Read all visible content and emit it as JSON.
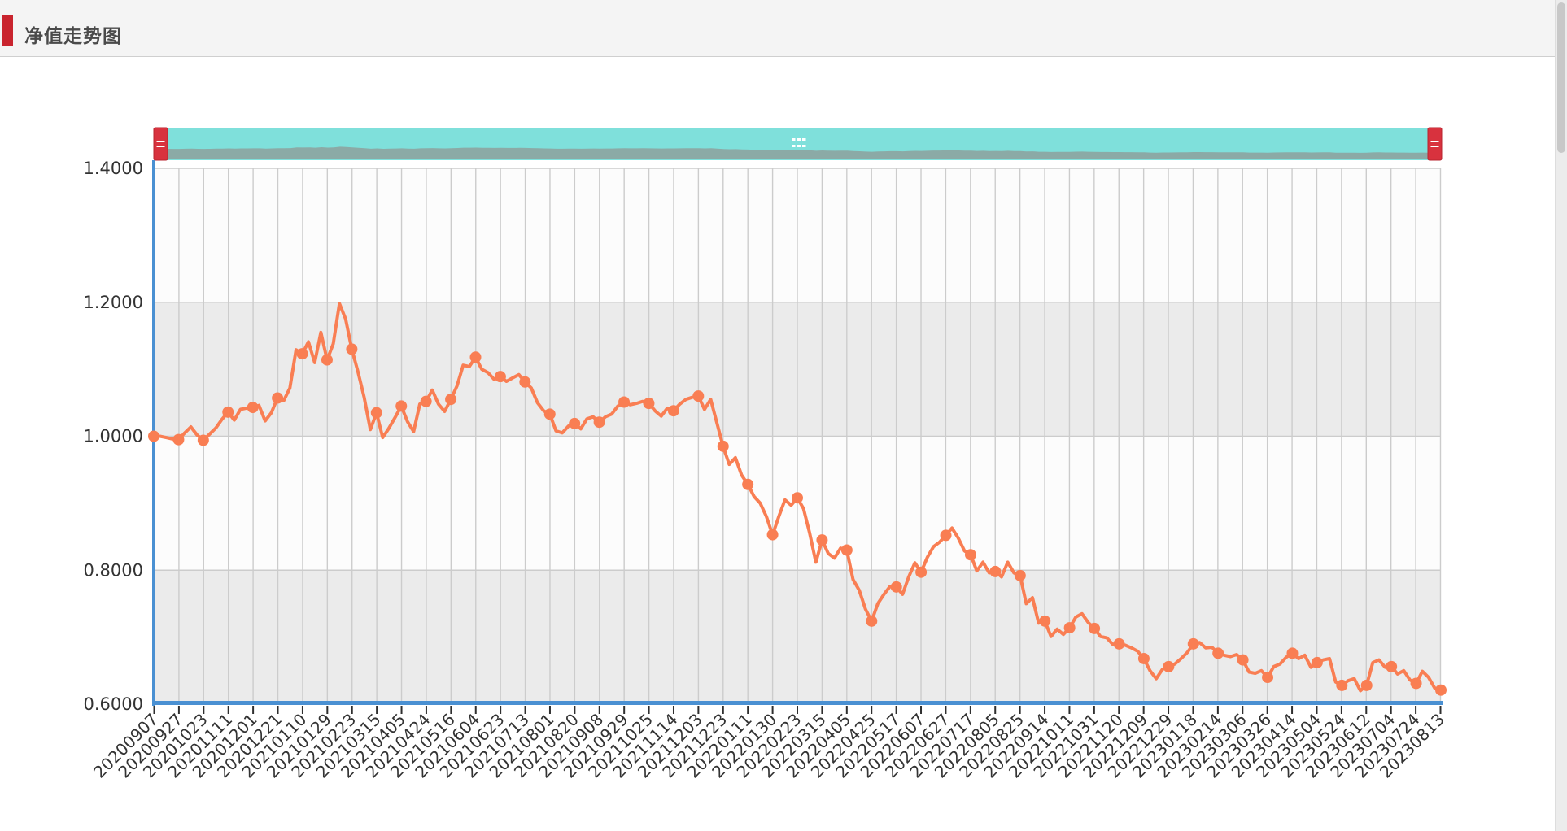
{
  "header": {
    "title": "净值走势图"
  },
  "chart_data": {
    "type": "line",
    "title": "净值走势图",
    "x_labels": [
      "20200907",
      "20200927",
      "20201023",
      "20201111",
      "20201201",
      "20201221",
      "20210110",
      "20210129",
      "20210223",
      "20210315",
      "20210405",
      "20210424",
      "20210516",
      "20210604",
      "20210623",
      "20210713",
      "20210801",
      "20210820",
      "20210908",
      "20210929",
      "20211025",
      "20211114",
      "20211203",
      "20211223",
      "20220111",
      "20220130",
      "20220223",
      "20220315",
      "20220405",
      "20220425",
      "20220517",
      "20220607",
      "20220627",
      "20220717",
      "20220805",
      "20220825",
      "20220914",
      "20221011",
      "20221031",
      "20221120",
      "20221209",
      "20221229",
      "20230118",
      "20230214",
      "20230306",
      "20230326",
      "20230414",
      "20230504",
      "20230524",
      "20230612",
      "20230704",
      "20230724",
      "20230813"
    ],
    "points_per_label": 4,
    "marker_every": 4,
    "y_tick_labels": [
      "1.4000",
      "1.2000",
      "1.0000",
      "0.8000",
      "0.6000"
    ],
    "ylim": [
      0.6,
      1.4
    ],
    "grid": true,
    "legend": "none",
    "series": [
      {
        "color": "#f97e53",
        "values": [
          1.0,
          1.0,
          0.998,
          0.996,
          0.995,
          1.005,
          1.014,
          1.002,
          0.994,
          1.003,
          1.012,
          1.025,
          1.036,
          1.024,
          1.04,
          1.042,
          1.043,
          1.046,
          1.023,
          1.035,
          1.057,
          1.053,
          1.072,
          1.129,
          1.123,
          1.141,
          1.11,
          1.155,
          1.114,
          1.138,
          1.198,
          1.175,
          1.13,
          1.096,
          1.058,
          1.01,
          1.035,
          0.998,
          1.012,
          1.028,
          1.045,
          1.022,
          1.007,
          1.048,
          1.052,
          1.069,
          1.048,
          1.037,
          1.055,
          1.075,
          1.106,
          1.104,
          1.118,
          1.1,
          1.095,
          1.085,
          1.089,
          1.082,
          1.087,
          1.092,
          1.081,
          1.072,
          1.05,
          1.038,
          1.033,
          1.008,
          1.005,
          1.015,
          1.019,
          1.011,
          1.026,
          1.029,
          1.021,
          1.029,
          1.033,
          1.045,
          1.051,
          1.047,
          1.049,
          1.052,
          1.049,
          1.038,
          1.03,
          1.042,
          1.038,
          1.048,
          1.055,
          1.058,
          1.06,
          1.04,
          1.055,
          1.02,
          0.985,
          0.958,
          0.968,
          0.942,
          0.928,
          0.91,
          0.9,
          0.88,
          0.853,
          0.88,
          0.905,
          0.897,
          0.908,
          0.892,
          0.855,
          0.812,
          0.845,
          0.825,
          0.818,
          0.833,
          0.83,
          0.786,
          0.77,
          0.742,
          0.724,
          0.75,
          0.764,
          0.776,
          0.775,
          0.764,
          0.79,
          0.811,
          0.797,
          0.819,
          0.835,
          0.842,
          0.852,
          0.863,
          0.848,
          0.829,
          0.823,
          0.799,
          0.812,
          0.796,
          0.798,
          0.79,
          0.812,
          0.796,
          0.792,
          0.75,
          0.759,
          0.721,
          0.724,
          0.701,
          0.712,
          0.704,
          0.714,
          0.73,
          0.735,
          0.722,
          0.713,
          0.701,
          0.699,
          0.689,
          0.69,
          0.688,
          0.684,
          0.679,
          0.668,
          0.65,
          0.638,
          0.652,
          0.656,
          0.66,
          0.668,
          0.677,
          0.69,
          0.692,
          0.684,
          0.685,
          0.676,
          0.673,
          0.671,
          0.674,
          0.666,
          0.648,
          0.646,
          0.65,
          0.64,
          0.656,
          0.66,
          0.67,
          0.676,
          0.668,
          0.673,
          0.655,
          0.662,
          0.666,
          0.668,
          0.633,
          0.628,
          0.635,
          0.638,
          0.62,
          0.628,
          0.662,
          0.666,
          0.655,
          0.656,
          0.645,
          0.65,
          0.636,
          0.631,
          0.649,
          0.64,
          0.624,
          0.621
        ]
      }
    ],
    "data_zoom": {
      "visible": true,
      "start": "20200907",
      "end": "20230813"
    },
    "colors": {
      "line": "#f97e53",
      "marker": "#f97e53",
      "axis": "#4a90d2",
      "grid_line": "#cccccc",
      "band_gray": "#ebebeb",
      "band_white": "#fcfcfc",
      "tick_text": "#333333",
      "slider_track": "#7fe0db",
      "slider_minimap": "#8baaa6",
      "slider_handle": "#d8323e",
      "title_accent": "#c9242e"
    }
  }
}
